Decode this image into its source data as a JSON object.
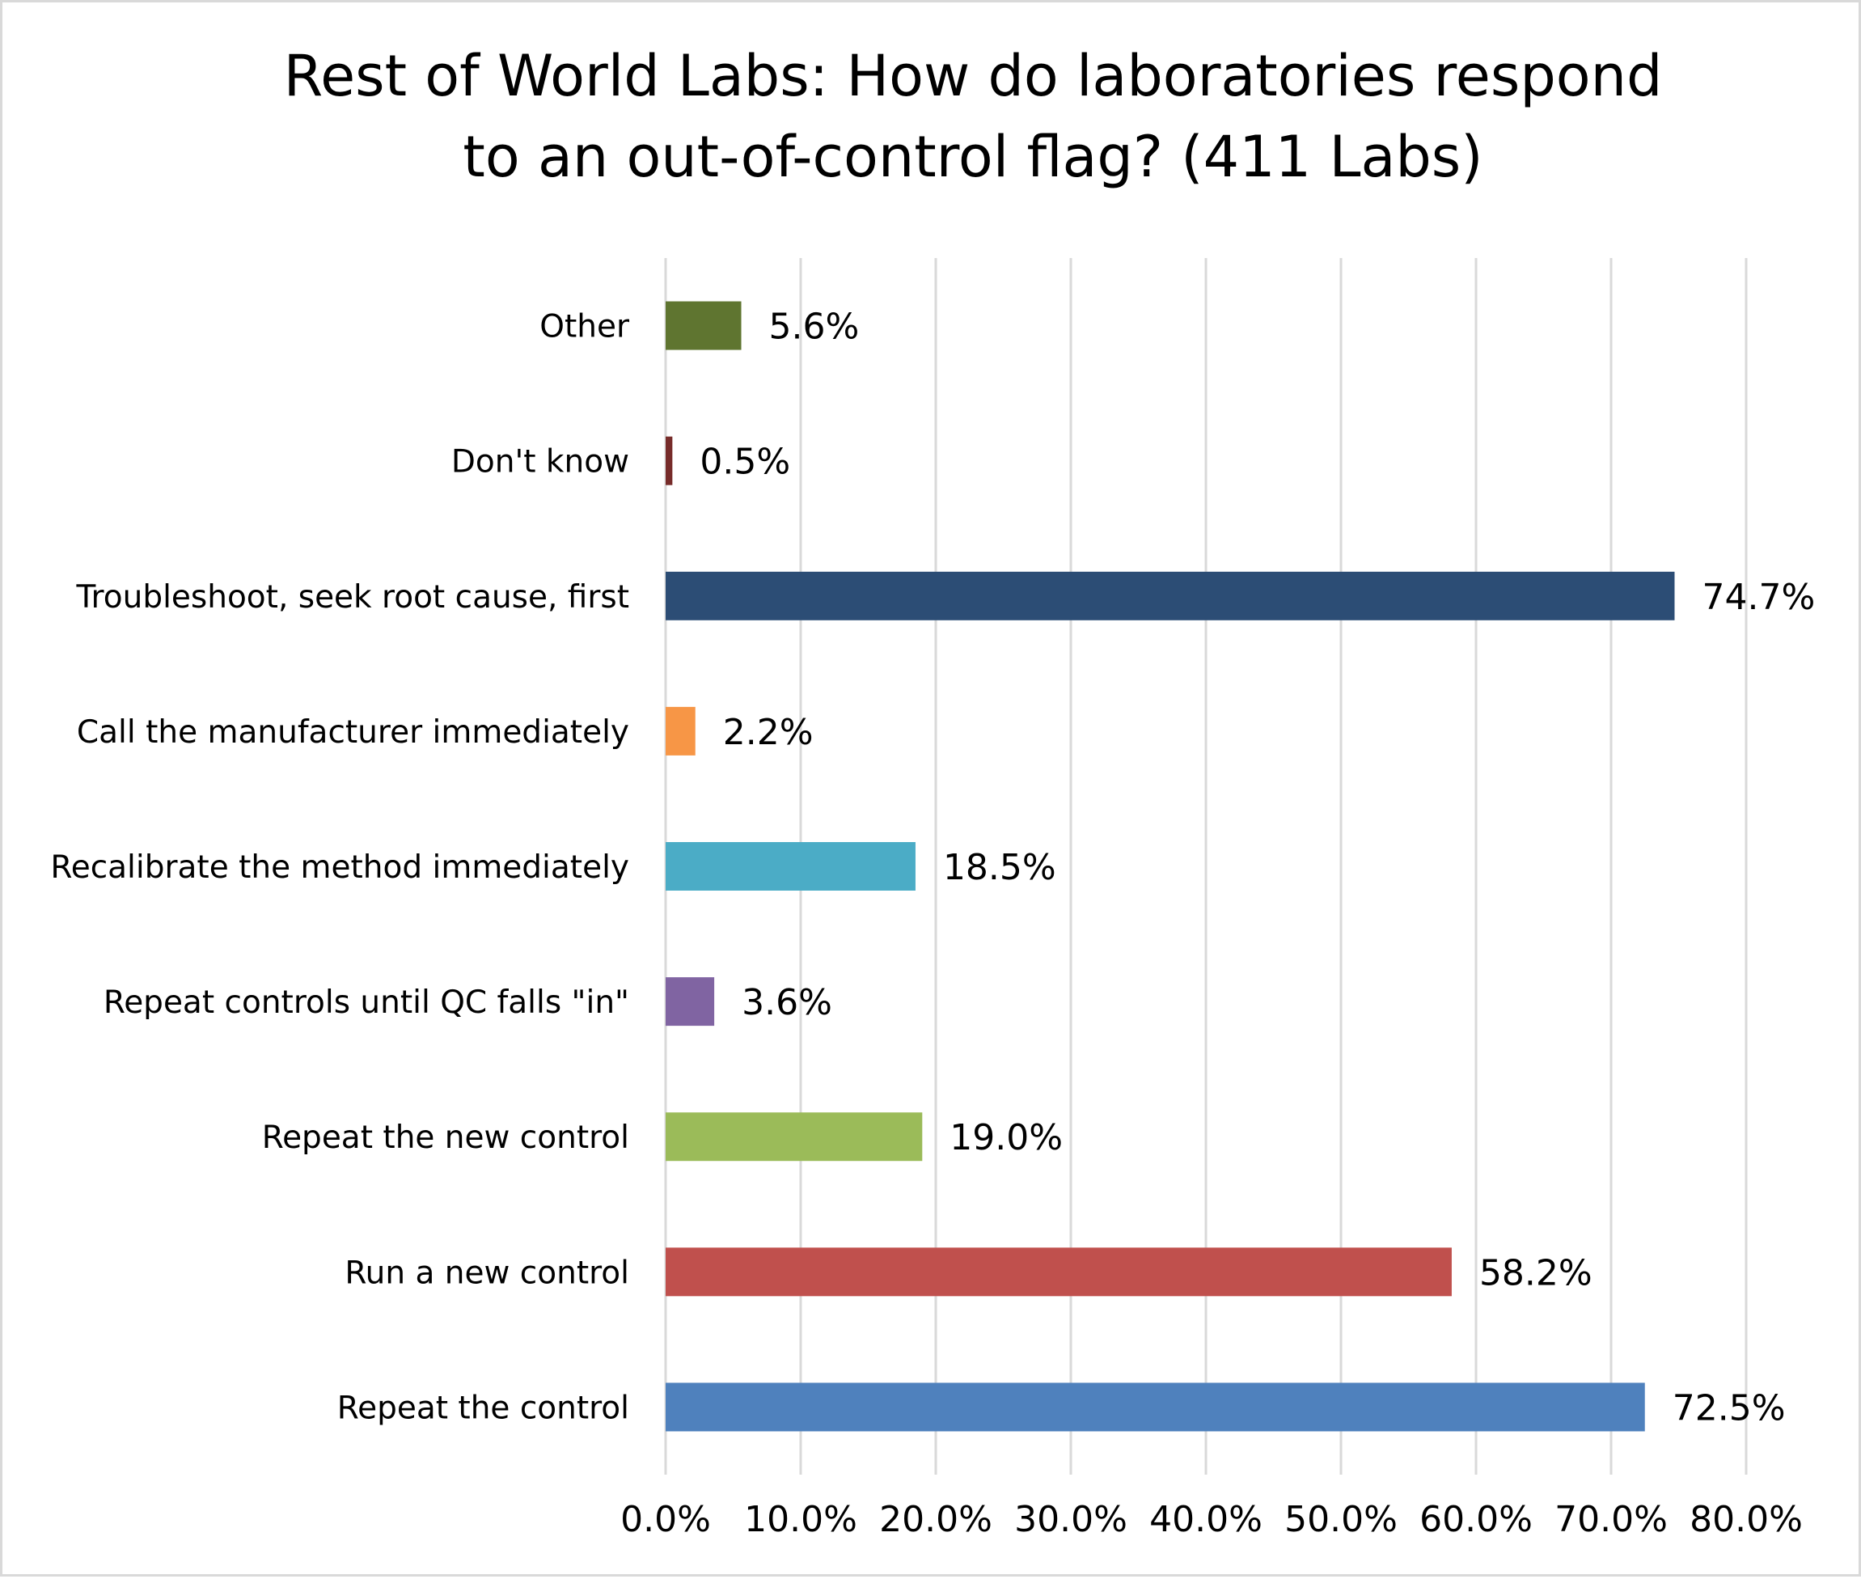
{
  "chart_data": {
    "type": "bar",
    "orientation": "horizontal",
    "title": "Rest of World Labs: How do laboratories respond to an out-of-control flag? (411 Labs)",
    "title_lines": [
      "Rest of World Labs: How do laboratories respond",
      "to an out-of-control flag? (411 Labs)"
    ],
    "categories": [
      "Repeat the control",
      "Run a new control",
      "Repeat the new control",
      "Repeat controls until QC falls \"in\"",
      "Recalibrate the method immediately",
      "Call the manufacturer immediately",
      "Troubleshoot, seek root cause, first",
      "Don't know",
      "Other"
    ],
    "values": [
      72.5,
      58.2,
      19.0,
      3.6,
      18.5,
      2.2,
      74.7,
      0.5,
      5.6
    ],
    "data_labels": [
      "72.5%",
      "58.2%",
      "19.0%",
      "3.6%",
      "18.5%",
      "2.2%",
      "74.7%",
      "0.5%",
      "5.6%"
    ],
    "colors": [
      "#4f81bd",
      "#c0504d",
      "#9bbb59",
      "#8064a2",
      "#4bacc6",
      "#f79646",
      "#2c4d75",
      "#772c2a",
      "#5f7530"
    ],
    "xlim": [
      0,
      80
    ],
    "x_ticks": [
      0,
      10,
      20,
      30,
      40,
      50,
      60,
      70,
      80
    ],
    "x_tick_labels": [
      "0.0%",
      "10.0%",
      "20.0%",
      "30.0%",
      "40.0%",
      "50.0%",
      "60.0%",
      "70.0%",
      "80.0%"
    ],
    "xlabel": "",
    "ylabel": "",
    "grid": "vertical",
    "legend": "none"
  }
}
